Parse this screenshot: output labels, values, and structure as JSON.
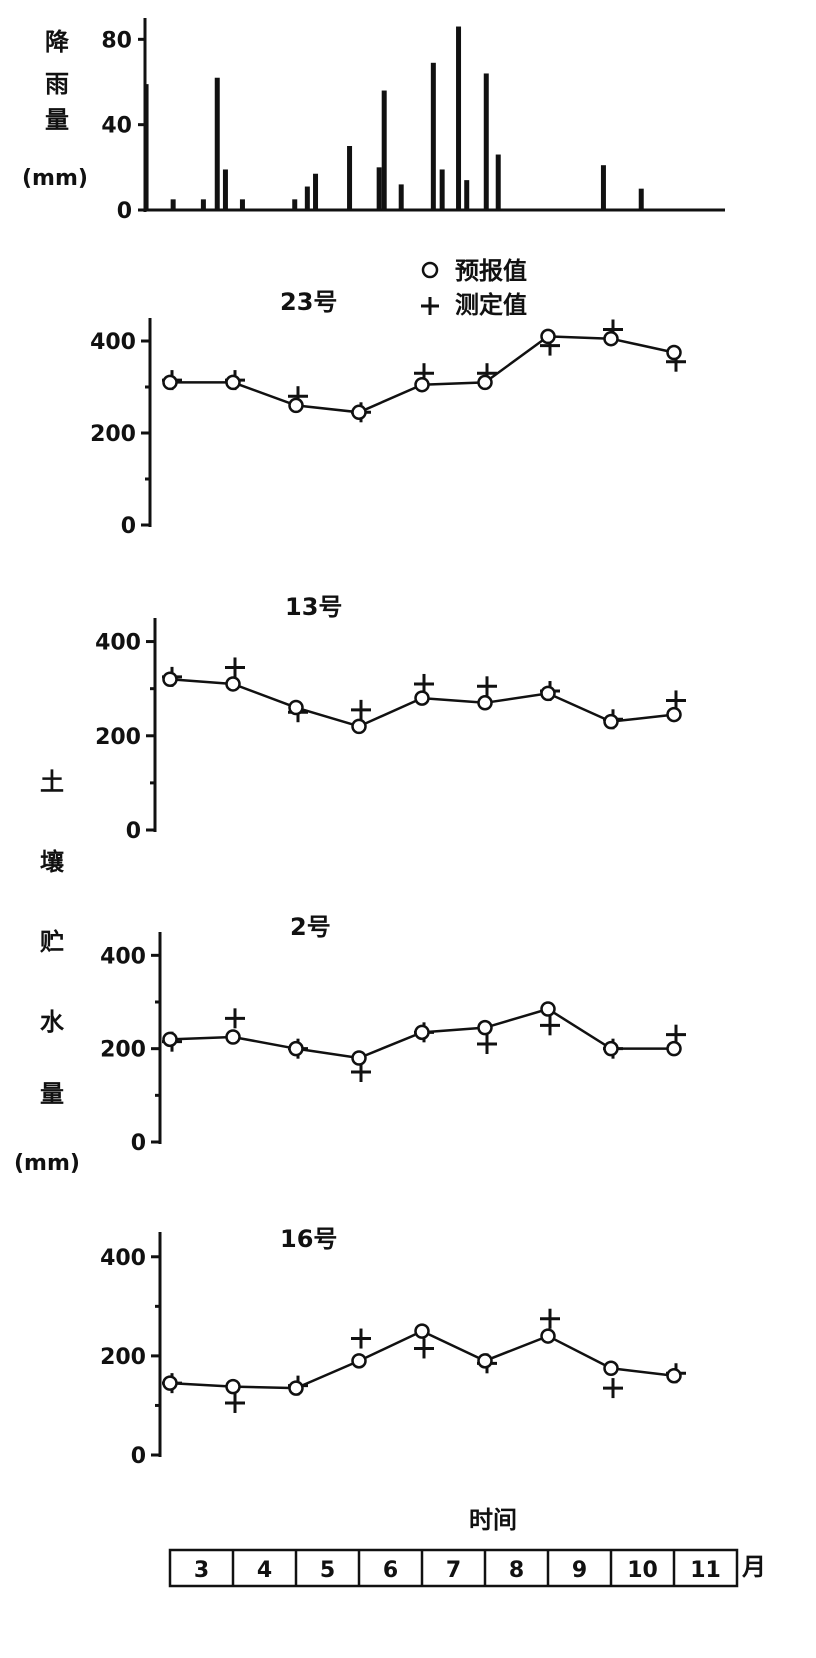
{
  "rain": {
    "ylabel_chars": [
      "降",
      "雨",
      "量"
    ],
    "unit": "(mm)",
    "yticks": [
      0,
      40,
      80
    ],
    "ylim": [
      0,
      90
    ]
  },
  "legend": {
    "predicted_symbol": "○",
    "predicted_label": "预报值",
    "measured_symbol": "+",
    "measured_label": "测定值"
  },
  "soil_ylabel_chars": [
    "土",
    "壤",
    "贮",
    "水",
    "量"
  ],
  "soil_unit": "(mm)",
  "months": [
    "3",
    "4",
    "5",
    "6",
    "7",
    "8",
    "9",
    "10",
    "11"
  ],
  "xlabel": "时间",
  "month_unit": "月",
  "chart_data": [
    {
      "type": "bar",
      "title": "",
      "xlabel": "时间",
      "ylabel": "降雨量(mm)",
      "x_range": [
        2.4,
        12.0
      ],
      "ylim": [
        0,
        90
      ],
      "x": [
        2.62,
        3.05,
        3.53,
        3.75,
        3.88,
        4.15,
        4.98,
        5.18,
        5.31,
        5.85,
        6.32,
        6.4,
        6.67,
        7.18,
        7.32,
        7.58,
        7.71,
        8.02,
        8.21,
        9.88,
        10.48
      ],
      "values": [
        59,
        5,
        5,
        62,
        19,
        5,
        5,
        11,
        17,
        30,
        20,
        56,
        12,
        69,
        19,
        86,
        14,
        64,
        26,
        21,
        10
      ]
    },
    {
      "type": "scatter",
      "title": "23号",
      "ylim": [
        0,
        450
      ],
      "yticks": [
        0,
        200,
        400
      ],
      "x": [
        3,
        4,
        5,
        6,
        7,
        8,
        9,
        10,
        11
      ],
      "series": [
        {
          "name": "预报值",
          "values": [
            310,
            310,
            260,
            245,
            305,
            310,
            410,
            405,
            375
          ]
        },
        {
          "name": "测定值",
          "values": [
            315,
            315,
            280,
            245,
            330,
            330,
            390,
            425,
            355
          ]
        }
      ]
    },
    {
      "type": "scatter",
      "title": "13号",
      "ylim": [
        0,
        450
      ],
      "yticks": [
        0,
        200,
        400
      ],
      "x": [
        3,
        4,
        5,
        6,
        7,
        8,
        9,
        10,
        11
      ],
      "series": [
        {
          "name": "预报值",
          "values": [
            320,
            310,
            260,
            220,
            280,
            270,
            290,
            230,
            245
          ]
        },
        {
          "name": "测定值",
          "values": [
            325,
            345,
            250,
            255,
            310,
            305,
            295,
            235,
            275
          ]
        }
      ]
    },
    {
      "type": "scatter",
      "title": "2号",
      "ylim": [
        0,
        450
      ],
      "yticks": [
        0,
        200,
        400
      ],
      "x": [
        3,
        4,
        5,
        6,
        7,
        8,
        9,
        10,
        11
      ],
      "series": [
        {
          "name": "预报值",
          "values": [
            220,
            225,
            200,
            180,
            235,
            245,
            285,
            200,
            200
          ]
        },
        {
          "name": "测定值",
          "values": [
            215,
            265,
            200,
            150,
            235,
            210,
            250,
            200,
            230
          ]
        }
      ]
    },
    {
      "type": "scatter",
      "title": "16号",
      "ylim": [
        0,
        450
      ],
      "yticks": [
        0,
        200,
        400
      ],
      "x": [
        3,
        4,
        5,
        6,
        7,
        8,
        9,
        10,
        11
      ],
      "series": [
        {
          "name": "预报值",
          "values": [
            145,
            138,
            135,
            190,
            250,
            190,
            240,
            175,
            160
          ]
        },
        {
          "name": "测定值",
          "values": [
            145,
            105,
            140,
            235,
            215,
            185,
            275,
            135,
            165
          ]
        }
      ]
    }
  ]
}
